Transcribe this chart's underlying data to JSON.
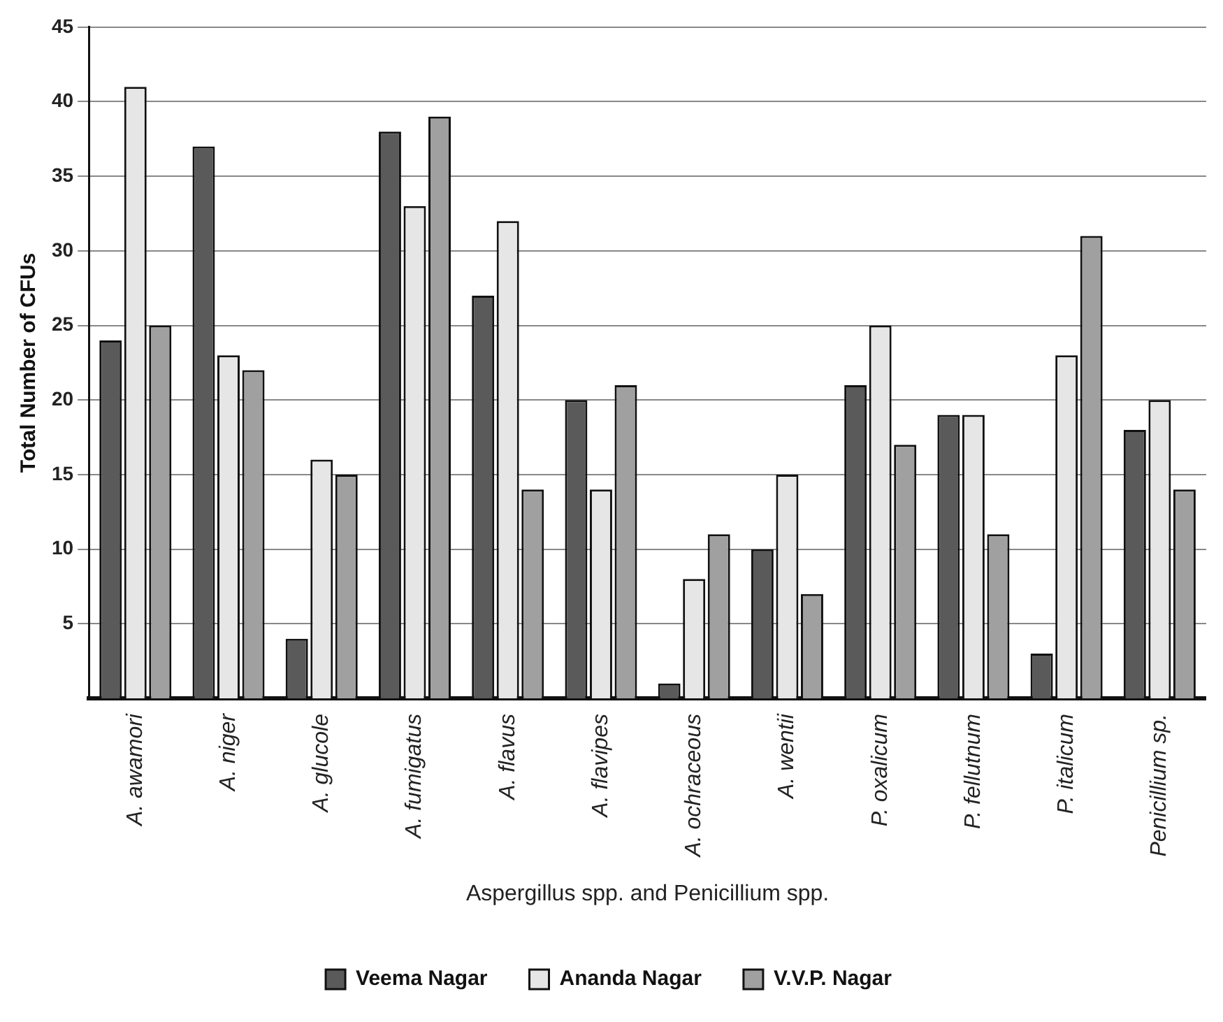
{
  "chart_data": {
    "type": "bar",
    "xlabel": "Aspergillus spp. and Penicillium spp.",
    "ylabel": "Total Number of CFUs",
    "categories": [
      "A. awamori",
      "A. niger",
      "A. glucole",
      "A. fumigatus",
      "A. flavus",
      "A. flavipes",
      "A. ochraceous",
      "A. wentii",
      "P. oxalicum",
      "P. fellutnum",
      "P. italicum",
      "Penicillium sp."
    ],
    "series": [
      {
        "name": "Veema Nagar",
        "color": "#5a5a5a",
        "values": [
          24,
          37,
          4,
          38,
          27,
          20,
          1,
          10,
          21,
          19,
          3,
          18
        ]
      },
      {
        "name": "Ananda Nagar",
        "color": "#e6e6e6",
        "values": [
          41,
          23,
          16,
          33,
          32,
          14,
          8,
          15,
          25,
          19,
          23,
          20
        ]
      },
      {
        "name": "V.V.P. Nagar",
        "color": "#a0a0a0",
        "values": [
          25,
          22,
          15,
          39,
          14,
          21,
          11,
          7,
          17,
          11,
          31,
          14
        ]
      }
    ],
    "ylim": [
      0,
      45
    ],
    "yticks": [
      5,
      10,
      15,
      20,
      25,
      30,
      35,
      40,
      45
    ],
    "grid": "y",
    "legend": "bottom"
  }
}
